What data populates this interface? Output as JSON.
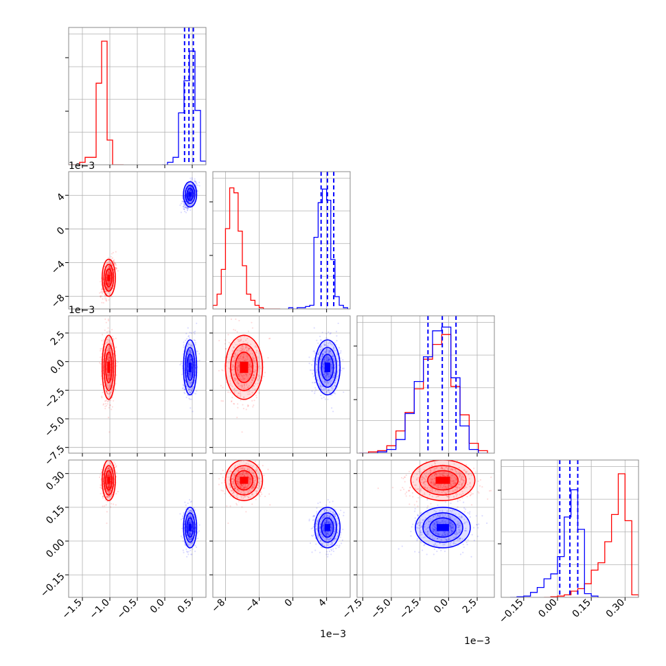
{
  "chart_data": {
    "type": "corner",
    "n_params": 4,
    "colors": {
      "red": "#ff0000",
      "blue": "#0000ff",
      "grid": "#b0b0b0"
    },
    "offset_labels": {
      "p0": "",
      "p1": "1e−3",
      "p2": "1e−3",
      "p3": ""
    },
    "params": [
      {
        "range": [
          -1.75,
          0.75
        ],
        "ticks": [
          -1.5,
          -1.0,
          -0.5,
          0.0,
          0.5
        ],
        "tick_labels": [
          "−1.5",
          "−1.0",
          "−0.5",
          "0.0",
          "0.5"
        ]
      },
      {
        "range": [
          -9.5,
          6.8
        ],
        "ticks": [
          -8,
          -4,
          0,
          4
        ],
        "tick_labels": [
          "−8",
          "−4",
          "0",
          "4"
        ]
      },
      {
        "range": [
          -8.0,
          4.0
        ],
        "ticks": [
          -7.5,
          -5.0,
          -2.5,
          0.0,
          2.5
        ],
        "tick_labels": [
          "−7.5",
          "−5.0",
          "−2.5",
          "0.0",
          "2.5"
        ]
      },
      {
        "range": [
          -0.25,
          0.36
        ],
        "ticks": [
          -0.15,
          0.0,
          0.15,
          0.3
        ],
        "tick_labels": [
          "−0.15",
          "0.00",
          "0.15",
          "0.30"
        ]
      }
    ],
    "series": [
      {
        "color": "red",
        "mean": [
          -1.02,
          -5.8,
          -0.5,
          0.27
        ],
        "std": [
          0.06,
          1.1,
          1.4,
          0.045
        ],
        "n_points": 550
      },
      {
        "color": "blue",
        "mean": [
          0.46,
          4.1,
          -0.5,
          0.06
        ],
        "std": [
          0.06,
          0.75,
          1.2,
          0.045
        ],
        "n_points": 550
      }
    ],
    "diagonal_hist": [
      {
        "red": {
          "edges": [
            -1.75,
            -1.65,
            -1.55,
            -1.45,
            -1.35,
            -1.25,
            -1.15,
            -1.05,
            -0.95,
            -0.85,
            -0.75
          ],
          "counts": [
            0,
            0,
            0.02,
            0.06,
            0.06,
            0.66,
            1.0,
            0.2,
            0,
            0
          ]
        },
        "blue": {
          "edges": [
            -0.05,
            0.05,
            0.15,
            0.25,
            0.35,
            0.45,
            0.55,
            0.65,
            0.75
          ],
          "counts": [
            0,
            0.02,
            0.06,
            0.42,
            0.68,
            0.92,
            0.44,
            0.03
          ]
        },
        "quantiles": [
          0.36,
          0.44,
          0.52
        ]
      },
      {
        "red": {
          "edges": [
            -10,
            -9.5,
            -9,
            -8.5,
            -8,
            -7.5,
            -7,
            -6.5,
            -6,
            -5.5,
            -5,
            -4.5,
            -4,
            -3.5,
            -3,
            -2.5,
            -2,
            -1.5
          ],
          "counts": [
            0,
            0.03,
            0.12,
            0.32,
            0.65,
            0.98,
            0.94,
            0.63,
            0.35,
            0.12,
            0.07,
            0.03,
            0.01,
            0,
            0,
            0,
            0
          ]
        },
        "blue": {
          "edges": [
            -0.5,
            0,
            0.5,
            1,
            1.5,
            2,
            2.5,
            3,
            3.5,
            4,
            4.5,
            5,
            5.5,
            6,
            6.5
          ],
          "counts": [
            0.01,
            0,
            0.01,
            0.01,
            0.02,
            0.03,
            0.58,
            0.86,
            0.97,
            0.88,
            0.4,
            0.1,
            0.03,
            0.01
          ]
        },
        "quantiles": [
          3.35,
          4.1,
          4.85
        ]
      },
      {
        "red": {
          "edges": [
            -7.8,
            -7.0,
            -6.2,
            -5.4,
            -4.6,
            -3.8,
            -3.0,
            -2.2,
            -1.4,
            -0.6,
            0.2,
            1.0,
            1.8,
            2.6,
            3.4
          ],
          "counts": [
            0,
            0.01,
            0.02,
            0.06,
            0.18,
            0.33,
            0.52,
            0.76,
            0.88,
            0.96,
            0.54,
            0.31,
            0.08,
            0.02
          ]
        },
        "blue": {
          "edges": [
            -7.8,
            -7.0,
            -6.2,
            -5.4,
            -4.6,
            -3.8,
            -3.0,
            -2.2,
            -1.4,
            -0.6,
            0.2,
            1.0,
            1.8,
            2.6,
            3.4
          ],
          "counts": [
            0,
            0,
            0.01,
            0.03,
            0.11,
            0.32,
            0.58,
            0.78,
            0.99,
            1.02,
            0.61,
            0.22,
            0.03,
            0
          ]
        },
        "quantiles": [
          -1.8,
          -0.55,
          0.65
        ]
      },
      {
        "red": {
          "edges": [
            -0.06,
            -0.03,
            0.0,
            0.03,
            0.06,
            0.09,
            0.12,
            0.15,
            0.18,
            0.21,
            0.24,
            0.27,
            0.3,
            0.33,
            0.36
          ],
          "counts": [
            0,
            0.005,
            0.01,
            0.02,
            0.05,
            0.07,
            0.11,
            0.22,
            0.28,
            0.45,
            0.67,
            1.0,
            0.62,
            0.02
          ]
        },
        "blue": {
          "edges": [
            -0.21,
            -0.18,
            -0.15,
            -0.12,
            -0.09,
            -0.06,
            -0.03,
            0.0,
            0.03,
            0.06,
            0.09,
            0.12,
            0.15,
            0.18
          ],
          "counts": [
            0,
            0.005,
            0.01,
            0.04,
            0.08,
            0.15,
            0.19,
            0.33,
            0.65,
            0.87,
            0.55,
            0.03,
            0.01
          ]
        },
        "quantiles": [
          0.01,
          0.055,
          0.09
        ]
      }
    ]
  }
}
